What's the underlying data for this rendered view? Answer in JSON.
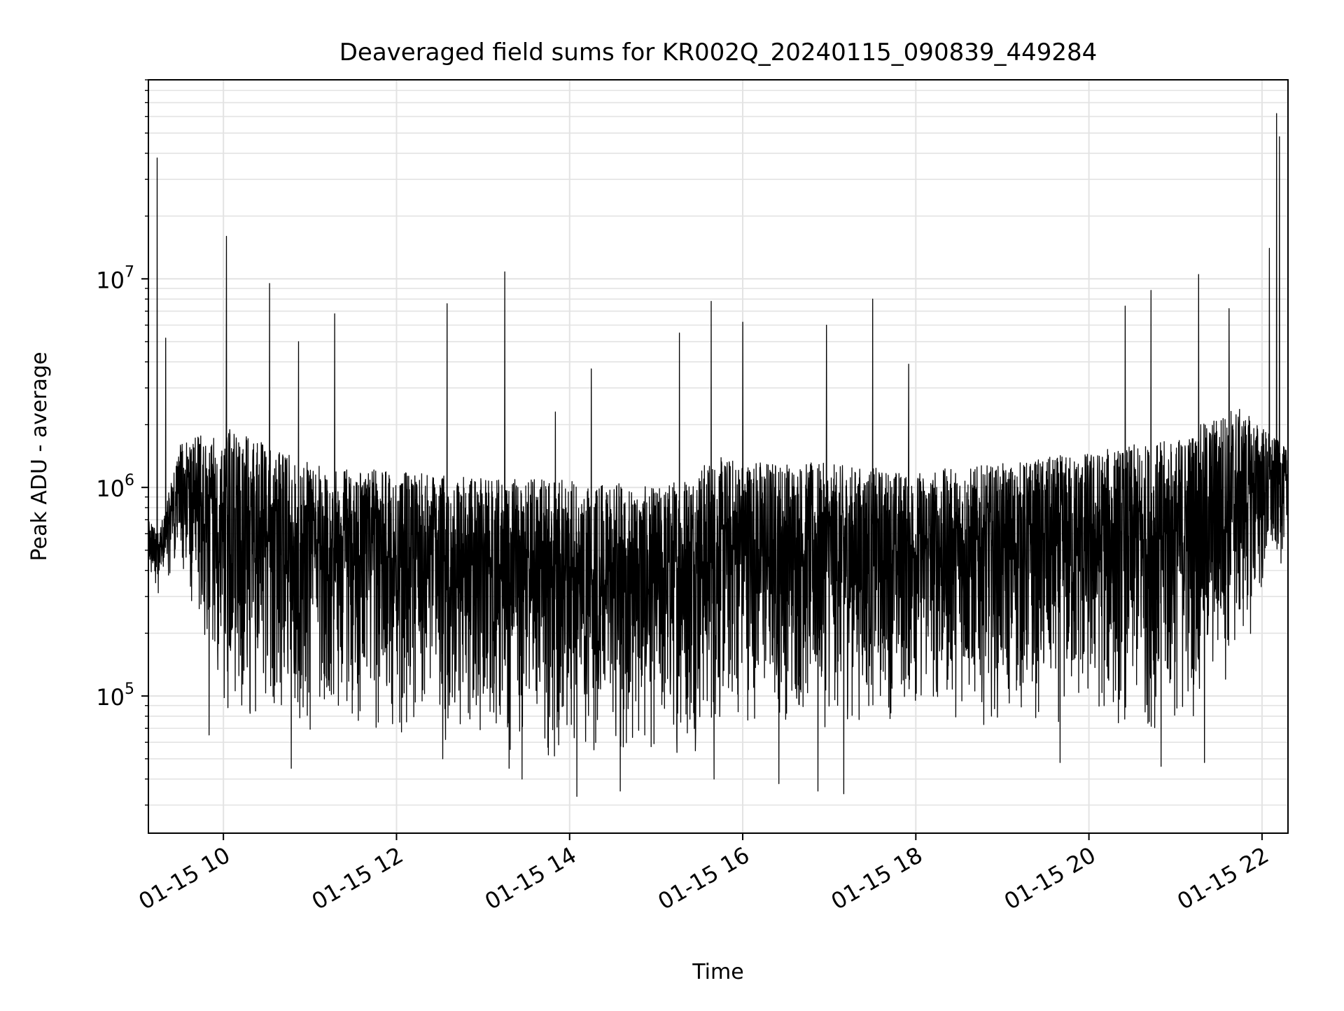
{
  "chart_data": {
    "type": "line",
    "title": "Deaveraged field sums for KR002Q_20240115_090839_449284",
    "xlabel": "Time",
    "ylabel": "Peak ADU - average",
    "x_axis": {
      "kind": "datetime",
      "range": [
        "2024-01-15T09:08",
        "2024-01-15T22:18"
      ],
      "ticks": [
        {
          "t": "2024-01-15T10:00",
          "label": "01-15 10"
        },
        {
          "t": "2024-01-15T12:00",
          "label": "01-15 12"
        },
        {
          "t": "2024-01-15T14:00",
          "label": "01-15 14"
        },
        {
          "t": "2024-01-15T16:00",
          "label": "01-15 16"
        },
        {
          "t": "2024-01-15T18:00",
          "label": "01-15 18"
        },
        {
          "t": "2024-01-15T20:00",
          "label": "01-15 20"
        },
        {
          "t": "2024-01-15T22:00",
          "label": "01-15 22"
        }
      ]
    },
    "y_axis": {
      "scale": "log",
      "range": [
        22000,
        90000000
      ],
      "ticks": [
        {
          "value": 100000,
          "base": "10",
          "exp": "5"
        },
        {
          "value": 1000000,
          "base": "10",
          "exp": "6"
        },
        {
          "value": 10000000,
          "base": "10",
          "exp": "7"
        }
      ]
    },
    "grid": true,
    "line_color": "#000000",
    "series": [
      {
        "envelope": [
          {
            "t": "09:08",
            "low": 400000,
            "high": 700000
          },
          {
            "t": "09:15",
            "low": 300000,
            "high": 600000
          },
          {
            "t": "09:30",
            "low": 400000,
            "high": 1600000
          },
          {
            "t": "10:00",
            "low": 80000,
            "high": 2000000
          },
          {
            "t": "11:00",
            "low": 60000,
            "high": 1300000
          },
          {
            "t": "12:00",
            "low": 60000,
            "high": 1200000
          },
          {
            "t": "13:00",
            "low": 55000,
            "high": 1100000
          },
          {
            "t": "14:00",
            "low": 45000,
            "high": 1100000
          },
          {
            "t": "15:00",
            "low": 45000,
            "high": 1000000
          },
          {
            "t": "15:40",
            "low": 55000,
            "high": 1400000
          },
          {
            "t": "16:00",
            "low": 70000,
            "high": 1400000
          },
          {
            "t": "17:00",
            "low": 65000,
            "high": 1300000
          },
          {
            "t": "18:00",
            "low": 75000,
            "high": 1200000
          },
          {
            "t": "19:00",
            "low": 70000,
            "high": 1300000
          },
          {
            "t": "20:00",
            "low": 65000,
            "high": 1500000
          },
          {
            "t": "21:00",
            "low": 60000,
            "high": 1700000
          },
          {
            "t": "21:40",
            "low": 110000,
            "high": 2500000
          },
          {
            "t": "22:00",
            "low": 250000,
            "high": 2000000
          },
          {
            "t": "22:18",
            "low": 500000,
            "high": 1500000
          }
        ],
        "spikes": [
          {
            "t": "09:14",
            "value": 38000000
          },
          {
            "t": "09:20",
            "value": 5200000
          },
          {
            "t": "10:02",
            "value": 16000000
          },
          {
            "t": "10:32",
            "value": 9500000
          },
          {
            "t": "10:52",
            "value": 5000000
          },
          {
            "t": "11:17",
            "value": 6800000
          },
          {
            "t": "12:35",
            "value": 7600000
          },
          {
            "t": "13:15",
            "value": 10800000
          },
          {
            "t": "13:50",
            "value": 2300000
          },
          {
            "t": "14:15",
            "value": 3700000
          },
          {
            "t": "15:16",
            "value": 5500000
          },
          {
            "t": "15:38",
            "value": 7800000
          },
          {
            "t": "16:00",
            "value": 6200000
          },
          {
            "t": "16:58",
            "value": 6000000
          },
          {
            "t": "17:30",
            "value": 8000000
          },
          {
            "t": "17:55",
            "value": 3900000
          },
          {
            "t": "20:25",
            "value": 7400000
          },
          {
            "t": "20:43",
            "value": 8800000
          },
          {
            "t": "21:16",
            "value": 10500000
          },
          {
            "t": "21:37",
            "value": 7200000
          },
          {
            "t": "22:05",
            "value": 14000000
          },
          {
            "t": "22:10",
            "value": 62000000
          },
          {
            "t": "22:12",
            "value": 48000000
          }
        ],
        "dips": [
          {
            "t": "09:50",
            "value": 65000
          },
          {
            "t": "10:47",
            "value": 45000
          },
          {
            "t": "12:32",
            "value": 50000
          },
          {
            "t": "13:18",
            "value": 45000
          },
          {
            "t": "13:27",
            "value": 40000
          },
          {
            "t": "14:05",
            "value": 33000
          },
          {
            "t": "14:35",
            "value": 35000
          },
          {
            "t": "15:40",
            "value": 40000
          },
          {
            "t": "16:25",
            "value": 38000
          },
          {
            "t": "16:52",
            "value": 35000
          },
          {
            "t": "17:10",
            "value": 34000
          },
          {
            "t": "19:40",
            "value": 48000
          },
          {
            "t": "20:50",
            "value": 46000
          },
          {
            "t": "21:20",
            "value": 48000
          }
        ]
      }
    ]
  }
}
